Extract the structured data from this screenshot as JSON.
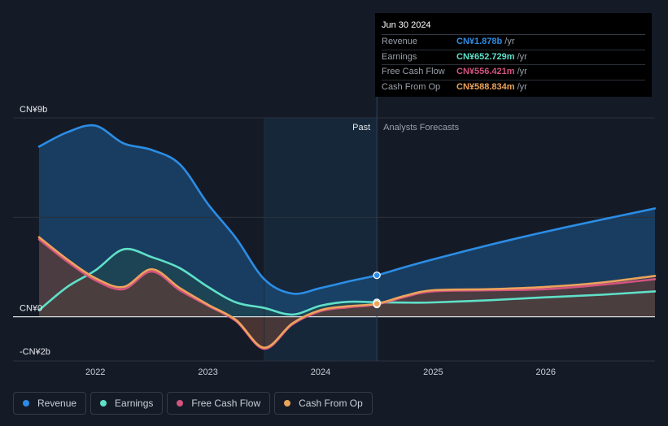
{
  "tooltip": {
    "date": "Jun 30 2024",
    "rows": [
      {
        "label": "Revenue",
        "value": "CN¥1.878b",
        "unit": "/yr",
        "color": "#2b8de6"
      },
      {
        "label": "Earnings",
        "value": "CN¥652.729m",
        "unit": "/yr",
        "color": "#5fe0c8"
      },
      {
        "label": "Free Cash Flow",
        "value": "CN¥556.421m",
        "unit": "/yr",
        "color": "#d4547f"
      },
      {
        "label": "Cash From Op",
        "value": "CN¥588.834m",
        "unit": "/yr",
        "color": "#eca35c"
      }
    ]
  },
  "legend": [
    {
      "label": "Revenue",
      "color": "#2b8de6"
    },
    {
      "label": "Earnings",
      "color": "#5fe0c8"
    },
    {
      "label": "Free Cash Flow",
      "color": "#d4547f"
    },
    {
      "label": "Cash From Op",
      "color": "#eca35c"
    }
  ],
  "chart_data": {
    "type": "line",
    "title": "",
    "xlabel": "",
    "ylabel": "",
    "y_unit": "CN¥ billions",
    "ylim": [
      -2,
      9
    ],
    "xlim": [
      2021.5,
      2026.97
    ],
    "y_tick_labels": [
      {
        "value": 9,
        "label": "CN¥9b"
      },
      {
        "value": 0,
        "label": "CN¥0"
      },
      {
        "value": -2,
        "label": "-CN¥2b"
      }
    ],
    "x_ticks": [
      {
        "value": 2022,
        "label": "2022"
      },
      {
        "value": 2023,
        "label": "2023"
      },
      {
        "value": 2024,
        "label": "2024"
      },
      {
        "value": 2025,
        "label": "2025"
      },
      {
        "value": 2026,
        "label": "2026"
      }
    ],
    "past_label": "Past",
    "forecast_label": "Analysts Forecasts",
    "forecast_start": 2024.5,
    "highlight_start": 2023.5,
    "series": [
      {
        "name": "Revenue",
        "color": "#2b8de6",
        "points": [
          [
            2021.5,
            7.7
          ],
          [
            2021.75,
            8.35
          ],
          [
            2022.0,
            8.65
          ],
          [
            2022.25,
            7.85
          ],
          [
            2022.5,
            7.55
          ],
          [
            2022.75,
            6.9
          ],
          [
            2023.0,
            5.1
          ],
          [
            2023.25,
            3.55
          ],
          [
            2023.5,
            1.7
          ],
          [
            2023.75,
            1.05
          ],
          [
            2024.0,
            1.3
          ],
          [
            2024.25,
            1.6
          ],
          [
            2024.5,
            1.878
          ],
          [
            2024.75,
            2.25
          ],
          [
            2025.0,
            2.6
          ],
          [
            2025.5,
            3.25
          ],
          [
            2026.0,
            3.85
          ],
          [
            2026.5,
            4.4
          ],
          [
            2026.97,
            4.9
          ]
        ]
      },
      {
        "name": "Earnings",
        "color": "#5fe0c8",
        "points": [
          [
            2021.5,
            0.3
          ],
          [
            2021.75,
            1.35
          ],
          [
            2022.0,
            2.1
          ],
          [
            2022.25,
            3.05
          ],
          [
            2022.5,
            2.7
          ],
          [
            2022.75,
            2.2
          ],
          [
            2023.0,
            1.35
          ],
          [
            2023.25,
            0.65
          ],
          [
            2023.5,
            0.4
          ],
          [
            2023.75,
            0.1
          ],
          [
            2024.0,
            0.5
          ],
          [
            2024.25,
            0.68
          ],
          [
            2024.5,
            0.653
          ],
          [
            2024.75,
            0.64
          ],
          [
            2025.0,
            0.65
          ],
          [
            2025.5,
            0.75
          ],
          [
            2026.0,
            0.88
          ],
          [
            2026.5,
            1.0
          ],
          [
            2026.97,
            1.15
          ]
        ]
      },
      {
        "name": "Free Cash Flow",
        "color": "#d4547f",
        "points": [
          [
            2021.5,
            3.5
          ],
          [
            2021.75,
            2.5
          ],
          [
            2022.0,
            1.65
          ],
          [
            2022.25,
            1.25
          ],
          [
            2022.5,
            2.05
          ],
          [
            2022.75,
            1.2
          ],
          [
            2023.0,
            0.5
          ],
          [
            2023.25,
            -0.2
          ],
          [
            2023.5,
            -1.45
          ],
          [
            2023.75,
            -0.35
          ],
          [
            2024.0,
            0.25
          ],
          [
            2024.25,
            0.43
          ],
          [
            2024.5,
            0.556
          ],
          [
            2024.75,
            0.9
          ],
          [
            2025.0,
            1.15
          ],
          [
            2025.5,
            1.2
          ],
          [
            2026.0,
            1.25
          ],
          [
            2026.5,
            1.45
          ],
          [
            2026.97,
            1.7
          ]
        ]
      },
      {
        "name": "Cash From Op",
        "color": "#eca35c",
        "points": [
          [
            2021.5,
            3.6
          ],
          [
            2021.75,
            2.6
          ],
          [
            2022.0,
            1.75
          ],
          [
            2022.25,
            1.35
          ],
          [
            2022.5,
            2.15
          ],
          [
            2022.75,
            1.3
          ],
          [
            2023.0,
            0.55
          ],
          [
            2023.25,
            -0.15
          ],
          [
            2023.5,
            -1.4
          ],
          [
            2023.75,
            -0.3
          ],
          [
            2024.0,
            0.3
          ],
          [
            2024.25,
            0.48
          ],
          [
            2024.5,
            0.589
          ],
          [
            2024.75,
            0.95
          ],
          [
            2025.0,
            1.2
          ],
          [
            2025.5,
            1.25
          ],
          [
            2026.0,
            1.35
          ],
          [
            2026.5,
            1.55
          ],
          [
            2026.97,
            1.85
          ]
        ]
      }
    ]
  }
}
